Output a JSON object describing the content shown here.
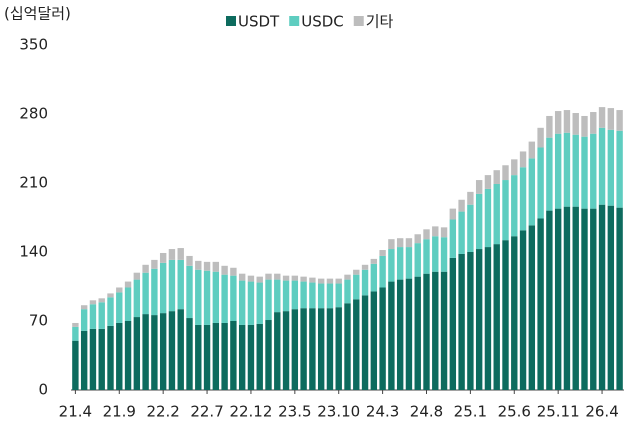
{
  "chart_data": {
    "type": "stacked_bar",
    "unit_label": "(십억달러)",
    "categories": [
      "21.4",
      null,
      null,
      null,
      null,
      "21.9",
      null,
      null,
      null,
      null,
      "22.2",
      null,
      null,
      null,
      null,
      "22.7",
      null,
      null,
      null,
      null,
      "22.12",
      null,
      null,
      null,
      null,
      "23.5",
      null,
      null,
      null,
      null,
      "23.10",
      null,
      null,
      null,
      null,
      "24.3",
      null,
      null,
      null,
      null,
      "24.8",
      null,
      null,
      null,
      null,
      "25.1",
      null,
      null,
      null,
      null,
      "25.6",
      null,
      null,
      null,
      null,
      "25.11",
      null,
      null,
      null,
      null,
      "26.4",
      null,
      null
    ],
    "series": [
      {
        "name": "USDT",
        "color": "#0d6b5e",
        "values": [
          50,
          60,
          62,
          62,
          65,
          68,
          70,
          74,
          77,
          76,
          78,
          80,
          82,
          73,
          66,
          66,
          68,
          68,
          70,
          66,
          66,
          67,
          71,
          79,
          80,
          82,
          83,
          83,
          83,
          83,
          84,
          88,
          92,
          96,
          100,
          104,
          110,
          112,
          113,
          115,
          118,
          120,
          120,
          134,
          138,
          140,
          143,
          145,
          148,
          152,
          156,
          162,
          167,
          174,
          182,
          184,
          186,
          186,
          184,
          184,
          188,
          187,
          185
        ]
      },
      {
        "name": "USDC",
        "color": "#5ecdc0",
        "values": [
          14,
          22,
          25,
          27,
          29,
          31,
          34,
          38,
          42,
          47,
          51,
          52,
          50,
          53,
          56,
          55,
          52,
          49,
          46,
          45,
          44,
          42,
          41,
          33,
          31,
          29,
          27,
          26,
          25,
          25,
          24,
          24,
          25,
          26,
          28,
          32,
          33,
          33,
          32,
          34,
          35,
          36,
          35,
          39,
          43,
          48,
          56,
          59,
          61,
          61,
          62,
          64,
          68,
          72,
          74,
          76,
          75,
          73,
          73,
          76,
          78,
          77,
          78
        ]
      },
      {
        "name": "기타",
        "color": "#bdbdbd",
        "values": [
          4,
          4,
          4,
          4,
          4,
          5,
          6,
          7,
          8,
          9,
          10,
          11,
          12,
          10,
          9,
          9,
          10,
          9,
          8,
          7,
          6,
          6,
          6,
          6,
          5,
          5,
          5,
          5,
          5,
          5,
          5,
          5,
          5,
          5,
          5,
          6,
          10,
          9,
          9,
          9,
          10,
          10,
          10,
          11,
          12,
          13,
          14,
          14,
          14,
          15,
          16,
          16,
          17,
          20,
          22,
          23,
          23,
          22,
          21,
          22,
          21,
          22,
          21
        ]
      }
    ],
    "ylim": [
      0,
      350
    ],
    "yticks": [
      0,
      70,
      140,
      210,
      280,
      350
    ]
  }
}
